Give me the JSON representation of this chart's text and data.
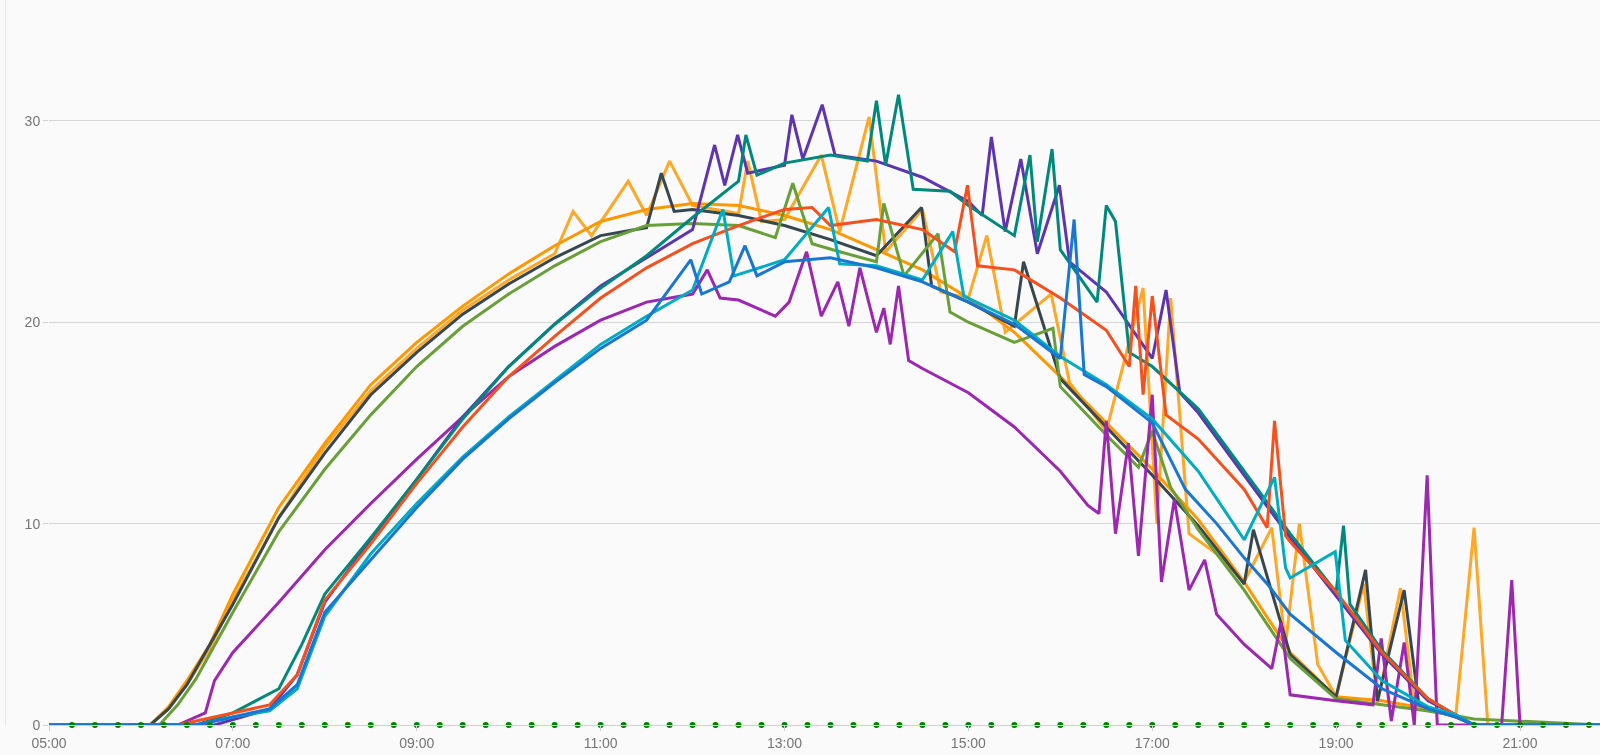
{
  "chart_data": {
    "type": "line",
    "line_style": "solid",
    "marker": "none",
    "grid": "y",
    "xlim": [
      5,
      21.87
    ],
    "ylim": [
      0,
      36
    ],
    "xticks": [
      {
        "value": 5,
        "label": "05:00"
      },
      {
        "value": 7,
        "label": "07:00"
      },
      {
        "value": 9,
        "label": "09:00"
      },
      {
        "value": 11,
        "label": "11:00"
      },
      {
        "value": 13,
        "label": "13:00"
      },
      {
        "value": 15,
        "label": "15:00"
      },
      {
        "value": 17,
        "label": "17:00"
      },
      {
        "value": 19,
        "label": "19:00"
      },
      {
        "value": 21,
        "label": "21:00"
      }
    ],
    "yticks": [
      0,
      10,
      20,
      30
    ],
    "series": [
      {
        "color": "#ffa726",
        "x": [
          5,
          6.1,
          6.3,
          6.5,
          6.75,
          7,
          7.25,
          7.5,
          7.75,
          8,
          8.5,
          9,
          9.5,
          10,
          10.5,
          10.7,
          10.9,
          11.3,
          11.5,
          11.75,
          12,
          12.5,
          12.6,
          12.75,
          13,
          13.4,
          13.6,
          13.92,
          14.1,
          14.5,
          14.7,
          15,
          15.2,
          15.4,
          15.9,
          16.1,
          16.5,
          16.9,
          17.05,
          17.2,
          17.4,
          17.7,
          18,
          18.3,
          18.45,
          18.6,
          18.8,
          19,
          19.3,
          19.45,
          19.7,
          19.85,
          20,
          20.3,
          20.5,
          20.65,
          20.8,
          21.87
        ],
        "values": [
          0,
          0,
          0.8,
          2,
          3.8,
          6.2,
          8.2,
          10.3,
          12.1,
          13.8,
          16.6,
          18.7,
          20.6,
          22.1,
          23.4,
          25.5,
          24.3,
          27,
          25.3,
          28,
          25.8,
          25.4,
          28,
          25,
          25.1,
          28.3,
          24.5,
          30.2,
          23.5,
          25.6,
          21.5,
          21.2,
          24.3,
          19.5,
          21.4,
          17,
          14.6,
          21.7,
          10,
          21.2,
          9.5,
          8.5,
          7.1,
          9.8,
          4,
          10,
          3,
          1.4,
          7,
          1.1,
          6.8,
          1,
          0.8,
          0.4,
          9.8,
          0,
          0,
          0
        ]
      },
      {
        "color": "#ff9800",
        "x": [
          5,
          6.1,
          6.3,
          6.5,
          6.75,
          7,
          7.5,
          8,
          8.5,
          9,
          9.5,
          10,
          10.5,
          11,
          11.5,
          12,
          12.5,
          13,
          13.5,
          14,
          14.5,
          15,
          15.5,
          16,
          16.5,
          17,
          17.5,
          18,
          18.5,
          19,
          19.5,
          20,
          20.3,
          20.5,
          21.87
        ],
        "values": [
          0,
          0,
          0.9,
          2.2,
          4,
          6.5,
          10.8,
          14,
          16.9,
          19,
          20.8,
          22.4,
          23.8,
          25,
          25.6,
          25.9,
          25.8,
          25.3,
          24.6,
          23.6,
          22.6,
          21.2,
          19.5,
          17.3,
          15,
          12.7,
          10.2,
          7.1,
          3.6,
          1.4,
          1.2,
          0.8,
          0.4,
          0,
          0
        ]
      },
      {
        "color": "#37474f",
        "x": [
          5,
          6.1,
          6.3,
          6.5,
          7,
          7.5,
          8,
          8.5,
          9,
          9.5,
          10,
          10.5,
          11,
          11.5,
          11.66,
          11.8,
          12,
          12.5,
          13,
          13.5,
          14,
          14.49,
          14.6,
          15,
          15.5,
          15.6,
          16,
          16.5,
          17,
          17.5,
          18,
          18.1,
          18.5,
          19,
          19.32,
          19.45,
          19.74,
          19.9,
          20.3,
          20.5,
          21.87
        ],
        "values": [
          0,
          0,
          0.8,
          2,
          6,
          10.3,
          13.5,
          16.4,
          18.5,
          20.4,
          21.9,
          23.2,
          24.3,
          24.7,
          27.4,
          25.5,
          25.6,
          25.3,
          24.8,
          24.1,
          23.3,
          25.7,
          21.8,
          21,
          19.8,
          23,
          17.2,
          14.8,
          12.4,
          9.9,
          7,
          9.7,
          3.5,
          1.4,
          7.7,
          1.2,
          6.7,
          1,
          0.4,
          0,
          0
        ]
      },
      {
        "color": "#689f38",
        "x": [
          5,
          6.2,
          6.4,
          6.6,
          7,
          7.5,
          8,
          8.5,
          9,
          9.5,
          10,
          10.5,
          11,
          11.5,
          12,
          12.5,
          12.9,
          13.09,
          13.3,
          13.6,
          14,
          14.08,
          14.3,
          14.67,
          14.8,
          15,
          15.5,
          15.92,
          16,
          16.5,
          16.85,
          17,
          17.2,
          17.5,
          18,
          18.5,
          19,
          19.5,
          20,
          20.5,
          21.87
        ],
        "values": [
          0,
          0,
          1,
          2.3,
          5.6,
          9.6,
          12.7,
          15.4,
          17.8,
          19.8,
          21.4,
          22.8,
          24,
          24.8,
          24.9,
          24.8,
          24.2,
          26.9,
          23.9,
          23.5,
          23,
          25.9,
          22.3,
          24.4,
          20.5,
          20,
          19,
          19.7,
          16.8,
          14.4,
          12.8,
          14.6,
          11.8,
          9.7,
          6.7,
          3.3,
          1.3,
          1,
          0.7,
          0.3,
          0
        ]
      },
      {
        "color": "#9c27b0",
        "x": [
          5,
          6.4,
          6.7,
          6.8,
          7,
          7.5,
          8,
          8.5,
          9,
          9.5,
          10,
          10.5,
          11,
          11.5,
          12,
          12.16,
          12.3,
          12.5,
          12.9,
          13.05,
          13.24,
          13.4,
          13.58,
          13.7,
          13.82,
          14,
          14.08,
          14.15,
          14.24,
          14.35,
          14.5,
          15,
          15.5,
          16,
          16.3,
          16.42,
          16.5,
          16.6,
          16.74,
          16.85,
          17,
          17.1,
          17.24,
          17.4,
          17.57,
          17.7,
          18,
          18.3,
          18.4,
          18.5,
          19,
          19.4,
          19.49,
          19.6,
          19.74,
          19.85,
          19.99,
          20.1,
          20.8,
          20.91,
          21.0,
          21.87
        ],
        "values": [
          0,
          0,
          0.6,
          2.2,
          3.6,
          6.1,
          8.7,
          11,
          13.2,
          15.3,
          17.3,
          18.8,
          20.1,
          21,
          21.4,
          22.6,
          21.2,
          21.1,
          20.3,
          21,
          23.5,
          20.3,
          22,
          19.8,
          22.7,
          19.5,
          20.7,
          18.9,
          21.8,
          18.1,
          17.7,
          16.5,
          14.8,
          12.6,
          10.9,
          10.5,
          15.1,
          9.5,
          14,
          8.4,
          16.4,
          7.1,
          11.2,
          6.7,
          8.2,
          5.5,
          4,
          2.8,
          5.1,
          1.5,
          1.2,
          1,
          4.3,
          0.2,
          4.1,
          0,
          12.4,
          0,
          0,
          7.2,
          0,
          0
        ]
      },
      {
        "color": "#5e35b1",
        "x": [
          5,
          6.8,
          7.4,
          7.7,
          8,
          8.5,
          9,
          9.5,
          10,
          10.5,
          11,
          11.5,
          12,
          12.24,
          12.35,
          12.49,
          12.6,
          13,
          13.08,
          13.2,
          13.41,
          13.55,
          14,
          14.5,
          15,
          15.15,
          15.25,
          15.4,
          15.57,
          15.75,
          15.99,
          16.1,
          16.5,
          17,
          17.15,
          17.3,
          17.5,
          18,
          18.5,
          19,
          19.5,
          20,
          20.3,
          20.5,
          21.87
        ],
        "values": [
          0,
          0,
          0.8,
          2.5,
          6.1,
          9.2,
          12.2,
          15.3,
          17.8,
          19.9,
          21.8,
          23.2,
          24.6,
          28.8,
          26.8,
          29.3,
          27.4,
          27.8,
          30.3,
          28.1,
          30.8,
          28.3,
          28,
          27.2,
          26,
          25.3,
          29.2,
          24.5,
          28.1,
          23.4,
          26.8,
          23,
          21.5,
          18.2,
          21.6,
          16.5,
          15.5,
          12.4,
          9.3,
          6.4,
          3.5,
          1.2,
          0.5,
          0,
          0
        ]
      },
      {
        "color": "#00897b",
        "x": [
          5,
          6.6,
          7,
          7.5,
          7.75,
          8,
          8.5,
          9,
          9.5,
          10,
          10.5,
          11,
          11.5,
          12,
          12.5,
          12.58,
          12.7,
          13,
          13.5,
          13.9,
          14.0,
          14.1,
          14.24,
          14.4,
          14.8,
          15,
          15.5,
          15.67,
          15.75,
          15.91,
          16,
          16.4,
          16.5,
          16.6,
          16.75,
          17,
          17.5,
          18,
          18.5,
          19,
          19.08,
          19.15,
          19.5,
          20,
          20.3,
          20.5,
          21.87
        ],
        "values": [
          0,
          0,
          0.6,
          1.8,
          4,
          6.5,
          9.3,
          12.2,
          15.2,
          17.8,
          19.9,
          21.7,
          23.3,
          25.2,
          27,
          29.3,
          27.3,
          27.9,
          28.3,
          28,
          31,
          27.8,
          31.3,
          26.6,
          26.5,
          25.8,
          24.3,
          28.3,
          24,
          28.6,
          23.6,
          21,
          25.8,
          25,
          18.5,
          17.8,
          15.7,
          12.6,
          9.5,
          6.6,
          9.9,
          6,
          3.7,
          1.3,
          0.5,
          0,
          0
        ]
      },
      {
        "color": "#f4511e",
        "x": [
          5,
          6.4,
          7,
          7.4,
          7.7,
          8,
          8.5,
          9,
          9.5,
          10,
          10.5,
          11,
          11.5,
          12,
          12.5,
          13,
          13.3,
          13.5,
          14,
          14.5,
          14.85,
          14.99,
          15.1,
          15.5,
          16,
          16.5,
          16.75,
          16.82,
          16.9,
          17.0,
          17.15,
          17.5,
          18,
          18.25,
          18.33,
          18.45,
          18.5,
          19,
          19.5,
          20,
          20.3,
          20.5,
          21.87
        ],
        "values": [
          0,
          0,
          0.6,
          1,
          2.5,
          6.2,
          9,
          12,
          14.8,
          17.3,
          19.3,
          21.2,
          22.7,
          23.9,
          24.8,
          25.6,
          25.7,
          24.8,
          25.1,
          24.6,
          23.5,
          26.8,
          22.8,
          22.6,
          21.2,
          19.6,
          17.8,
          21.8,
          16.4,
          21.3,
          15.4,
          14.2,
          11.7,
          9.8,
          15.1,
          9.4,
          9.1,
          6.6,
          3.6,
          1.3,
          0.5,
          0,
          0
        ]
      },
      {
        "color": "#00acc1",
        "x": [
          5,
          6.6,
          7,
          7.4,
          7.7,
          8,
          8.5,
          9,
          9.5,
          10,
          10.5,
          11,
          11.5,
          12,
          12.33,
          12.45,
          13,
          13.48,
          13.6,
          14,
          14.5,
          14.83,
          14.95,
          15.5,
          16,
          16.5,
          17,
          17.5,
          18,
          18.33,
          18.45,
          18.5,
          18.99,
          19.1,
          19.5,
          20,
          20.3,
          20.5,
          21.87
        ],
        "values": [
          0,
          0,
          0.4,
          0.7,
          1.8,
          5.4,
          8.5,
          11,
          13.3,
          15.3,
          17.1,
          18.9,
          20.3,
          21.6,
          25.6,
          22.3,
          23.1,
          25.7,
          22.9,
          22.8,
          22.1,
          24.5,
          21.3,
          20.1,
          18.3,
          16.9,
          15.2,
          12.6,
          9.2,
          12.3,
          7.8,
          7.3,
          8.6,
          4.2,
          2.2,
          0.9,
          0.5,
          0,
          0
        ]
      },
      {
        "color": "#1976d2",
        "x": [
          5,
          6.6,
          7,
          7.4,
          7.7,
          8,
          8.5,
          9,
          9.5,
          10,
          10.5,
          11,
          11.5,
          11.98,
          12.1,
          12.4,
          12.57,
          12.7,
          13,
          13.5,
          14,
          14.5,
          15,
          15.5,
          16,
          16.15,
          16.26,
          16.5,
          17,
          17.36,
          17.7,
          18,
          18.27,
          18.5,
          19,
          19.5,
          20,
          20.3,
          20.5,
          21.87
        ],
        "values": [
          0,
          0,
          0.4,
          0.8,
          2,
          5.6,
          8.2,
          10.8,
          13.2,
          15.2,
          17,
          18.7,
          20.1,
          23.1,
          21.4,
          22,
          23.8,
          22.3,
          23,
          23.2,
          22.7,
          22,
          21,
          19.9,
          18.2,
          25.1,
          17.4,
          16.8,
          15,
          11.7,
          10,
          8.3,
          6.9,
          5.5,
          3.6,
          1.8,
          0.8,
          0.4,
          0,
          0
        ]
      },
      {
        "color": "#008000",
        "type": "scatter",
        "marker": "circle",
        "x": [
          5.25,
          5.5,
          5.75,
          6,
          6.25,
          6.5,
          6.75,
          7,
          7.25,
          7.5,
          7.75,
          8,
          8.25,
          8.5,
          8.75,
          9,
          9.25,
          9.5,
          9.75,
          10,
          10.25,
          10.5,
          10.75,
          11,
          11.25,
          11.5,
          11.75,
          12,
          12.25,
          12.5,
          12.75,
          13,
          13.25,
          13.5,
          13.75,
          14,
          14.25,
          14.5,
          14.75,
          15,
          15.25,
          15.5,
          15.75,
          16,
          16.25,
          16.5,
          16.75,
          17,
          17.25,
          17.5,
          17.75,
          18,
          18.25,
          18.5,
          18.75,
          19,
          19.25,
          19.5,
          19.75,
          20,
          20.25,
          20.5,
          20.75,
          21,
          21.25,
          21.5,
          21.75
        ],
        "values": [
          0,
          0,
          0,
          0,
          0,
          0,
          0,
          0,
          0,
          0,
          0,
          0,
          0,
          0,
          0,
          0,
          0,
          0,
          0,
          0,
          0,
          0,
          0,
          0,
          0,
          0,
          0,
          0,
          0,
          0,
          0,
          0,
          0,
          0,
          0,
          0,
          0,
          0,
          0,
          0,
          0,
          0,
          0,
          0,
          0,
          0,
          0,
          0,
          0,
          0,
          0,
          0,
          0,
          0,
          0,
          0,
          0,
          0,
          0,
          0,
          0,
          0,
          0,
          0,
          0,
          0,
          0
        ]
      }
    ]
  }
}
